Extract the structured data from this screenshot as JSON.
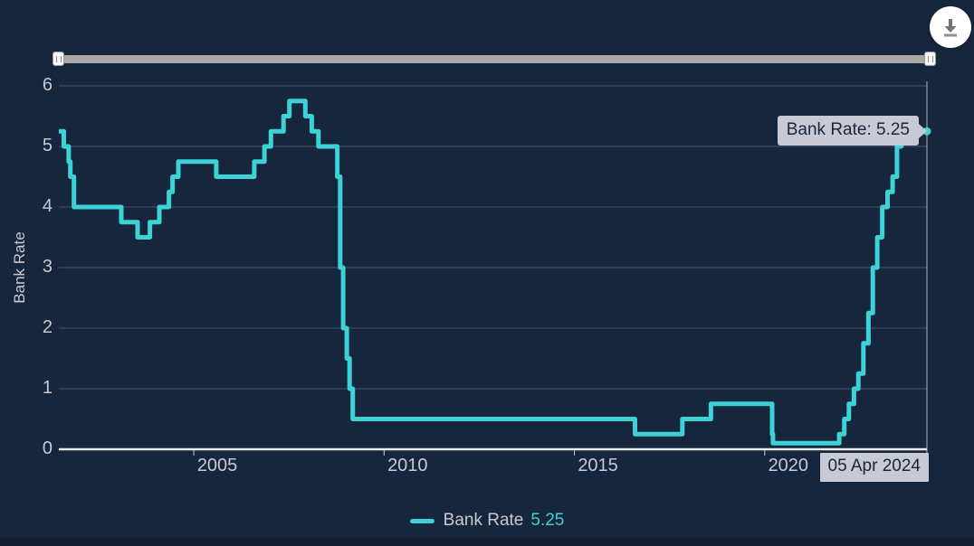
{
  "page": {
    "background": "#16263C",
    "footer_color": "#121F33"
  },
  "controls": {
    "download_button": {
      "icon": "download-icon",
      "bg": "#FFFFFF",
      "icon_color": "#6E7479"
    },
    "range_slider": {
      "track_color": "#A7A7A7",
      "handle_color": "#F7F7F7"
    }
  },
  "tooltip": {
    "text": "Bank Rate: 5.25",
    "bg": "#C7CAD4",
    "text_color": "#17263C"
  },
  "current_date_label": {
    "text": "05 Apr 2024",
    "bg": "#C7CAD4",
    "text_color": "#17263C"
  },
  "legend": {
    "label": "Bank Rate",
    "value": "5.25",
    "swatch_color": "#3DD2D6",
    "value_color": "#3DD2D6"
  },
  "chart_data": {
    "type": "line",
    "step": true,
    "title": "",
    "xlabel": "",
    "ylabel": "Bank Rate",
    "ylim": [
      0,
      6
    ],
    "yticks": [
      0,
      1,
      2,
      3,
      4,
      5,
      6
    ],
    "xticks": [
      2005,
      2010,
      2015,
      2020
    ],
    "x_range": [
      "2001-06-15",
      "2024-04-05"
    ],
    "grid": true,
    "legend_position": "bottom",
    "colors": {
      "line": "#3DD2D6",
      "grid": "#46566B",
      "axis": "#E8EAED",
      "tick_label": "#C9CAD1",
      "crosshair": "#C9CFD8"
    },
    "series": [
      {
        "name": "Bank Rate",
        "current_value": "5.25",
        "color": "#3DD2D6",
        "points": [
          [
            "2001-05-10",
            5.25
          ],
          [
            "2001-08-02",
            5.0
          ],
          [
            "2001-09-18",
            4.75
          ],
          [
            "2001-10-04",
            4.5
          ],
          [
            "2001-11-08",
            4.0
          ],
          [
            "2003-02-06",
            3.75
          ],
          [
            "2003-07-10",
            3.5
          ],
          [
            "2003-11-06",
            3.75
          ],
          [
            "2004-02-05",
            4.0
          ],
          [
            "2004-05-06",
            4.25
          ],
          [
            "2004-06-10",
            4.5
          ],
          [
            "2004-08-05",
            4.75
          ],
          [
            "2005-08-04",
            4.5
          ],
          [
            "2006-08-03",
            4.75
          ],
          [
            "2006-11-09",
            5.0
          ],
          [
            "2007-01-11",
            5.25
          ],
          [
            "2007-05-10",
            5.5
          ],
          [
            "2007-07-05",
            5.75
          ],
          [
            "2007-12-06",
            5.5
          ],
          [
            "2008-02-07",
            5.25
          ],
          [
            "2008-04-10",
            5.0
          ],
          [
            "2008-10-08",
            4.5
          ],
          [
            "2008-11-06",
            3.0
          ],
          [
            "2008-12-04",
            2.0
          ],
          [
            "2009-01-08",
            1.5
          ],
          [
            "2009-02-05",
            1.0
          ],
          [
            "2009-03-05",
            0.5
          ],
          [
            "2016-08-04",
            0.25
          ],
          [
            "2017-11-02",
            0.5
          ],
          [
            "2018-08-02",
            0.75
          ],
          [
            "2020-03-11",
            0.25
          ],
          [
            "2020-03-19",
            0.1
          ],
          [
            "2021-12-16",
            0.25
          ],
          [
            "2022-02-03",
            0.5
          ],
          [
            "2022-03-17",
            0.75
          ],
          [
            "2022-05-05",
            1.0
          ],
          [
            "2022-06-16",
            1.25
          ],
          [
            "2022-08-04",
            1.75
          ],
          [
            "2022-09-22",
            2.25
          ],
          [
            "2022-11-03",
            3.0
          ],
          [
            "2022-12-15",
            3.5
          ],
          [
            "2023-02-02",
            4.0
          ],
          [
            "2023-03-23",
            4.25
          ],
          [
            "2023-05-11",
            4.5
          ],
          [
            "2023-06-22",
            5.0
          ],
          [
            "2023-08-03",
            5.25
          ],
          [
            "2024-04-05",
            5.25
          ]
        ]
      }
    ]
  }
}
